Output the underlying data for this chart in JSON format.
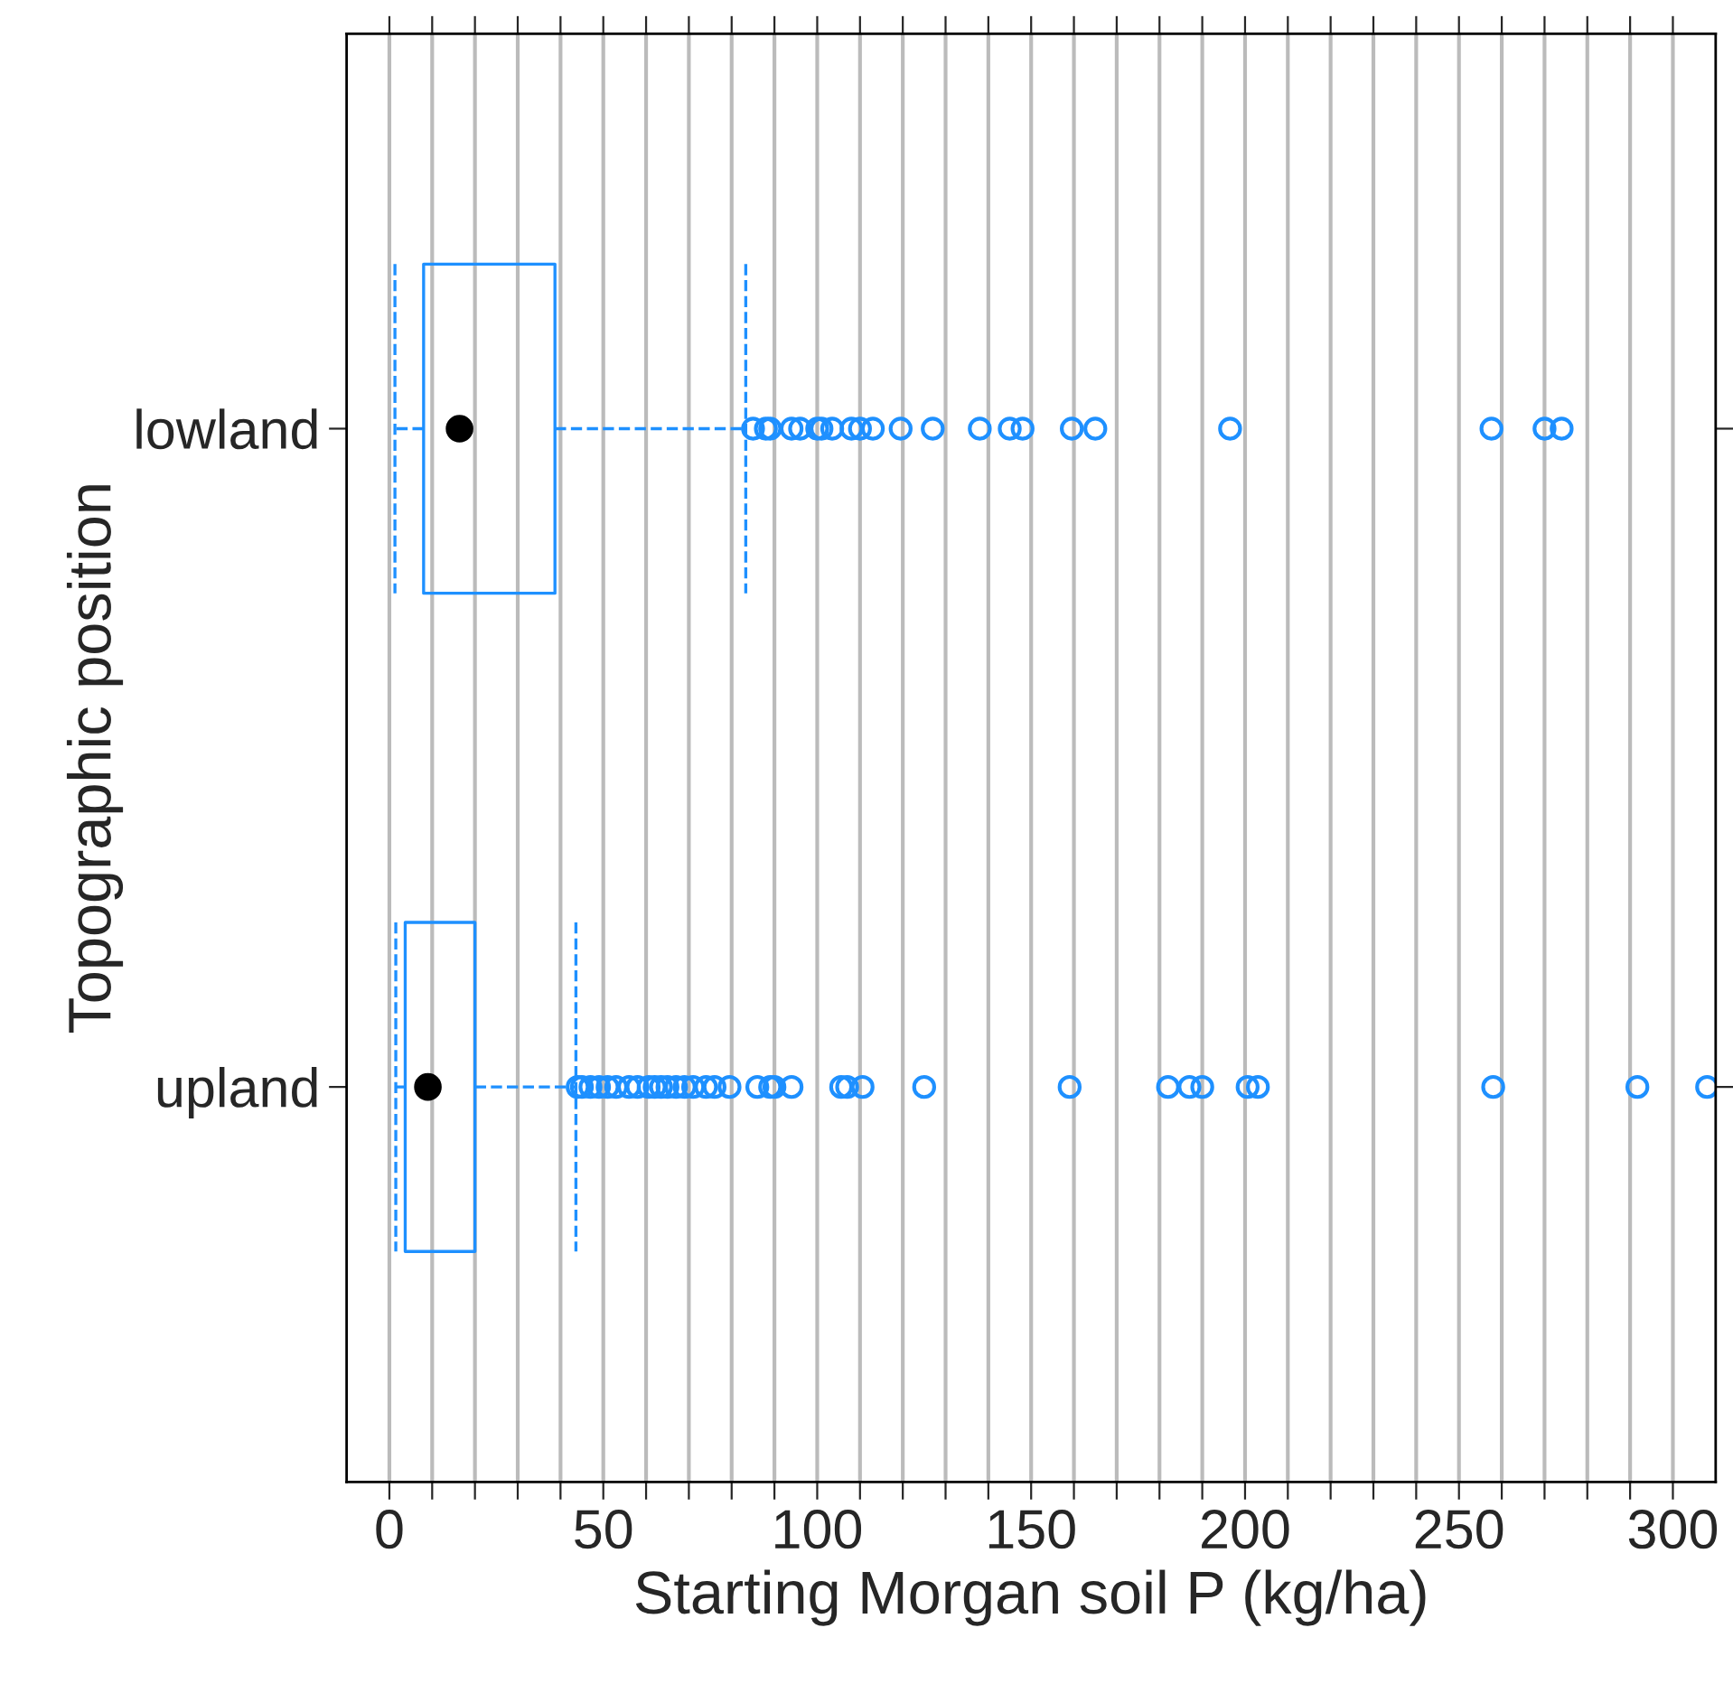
{
  "chart_data": {
    "type": "box",
    "orientation": "horizontal",
    "xlabel": "Starting Morgan soil P (kg/ha)",
    "ylabel": "Topographic position",
    "categories": [
      "lowland",
      "upland"
    ],
    "color": "#1e90ff",
    "boxes": [
      {
        "low": 1.3,
        "q1": 8,
        "median": 16.4,
        "q3": 38.7,
        "high": 83.3,
        "outliers": [
          85,
          88,
          89,
          94,
          96,
          100,
          101,
          103.5,
          108,
          110,
          113,
          119.5,
          127,
          138,
          145,
          148,
          159.5,
          165,
          196.5,
          257.6,
          270,
          274
        ]
      },
      {
        "low": 1.5,
        "q1": 3.7,
        "median": 9,
        "q3": 20,
        "high": 43.6,
        "outliers": [
          44,
          45,
          47,
          49,
          51,
          53,
          56,
          58,
          60.6,
          62,
          63.5,
          65,
          67,
          69,
          71,
          74,
          76,
          79.5,
          86,
          89,
          90,
          94,
          105.6,
          107,
          110.6,
          125,
          159,
          182,
          187,
          190,
          200.6,
          203,
          258,
          291.7,
          308
        ]
      }
    ],
    "xlim": [
      -10,
      310
    ],
    "xticks": [
      0,
      {
        "value": 10,
        "label": null
      },
      {
        "value": 20,
        "label": null
      },
      {
        "value": 30,
        "label": null
      },
      {
        "value": 40,
        "label": null
      },
      50,
      {
        "value": 60,
        "label": null
      },
      {
        "value": 70,
        "label": null
      },
      {
        "value": 80,
        "label": null
      },
      {
        "value": 90,
        "label": null
      },
      100,
      {
        "value": 110,
        "label": null
      },
      {
        "value": 120,
        "label": null
      },
      {
        "value": 130,
        "label": null
      },
      {
        "value": 140,
        "label": null
      },
      150,
      {
        "value": 160,
        "label": null
      },
      {
        "value": 170,
        "label": null
      },
      {
        "value": 180,
        "label": null
      },
      {
        "value": 190,
        "label": null
      },
      200,
      {
        "value": 210,
        "label": null
      },
      {
        "value": 220,
        "label": null
      },
      {
        "value": 230,
        "label": null
      },
      {
        "value": 240,
        "label": null
      },
      250,
      {
        "value": 260,
        "label": null
      },
      {
        "value": 270,
        "label": null
      },
      {
        "value": 280,
        "label": null
      },
      {
        "value": 290,
        "label": null
      },
      300
    ],
    "grid": "x",
    "marker": "circle",
    "line_style": "dashed"
  }
}
